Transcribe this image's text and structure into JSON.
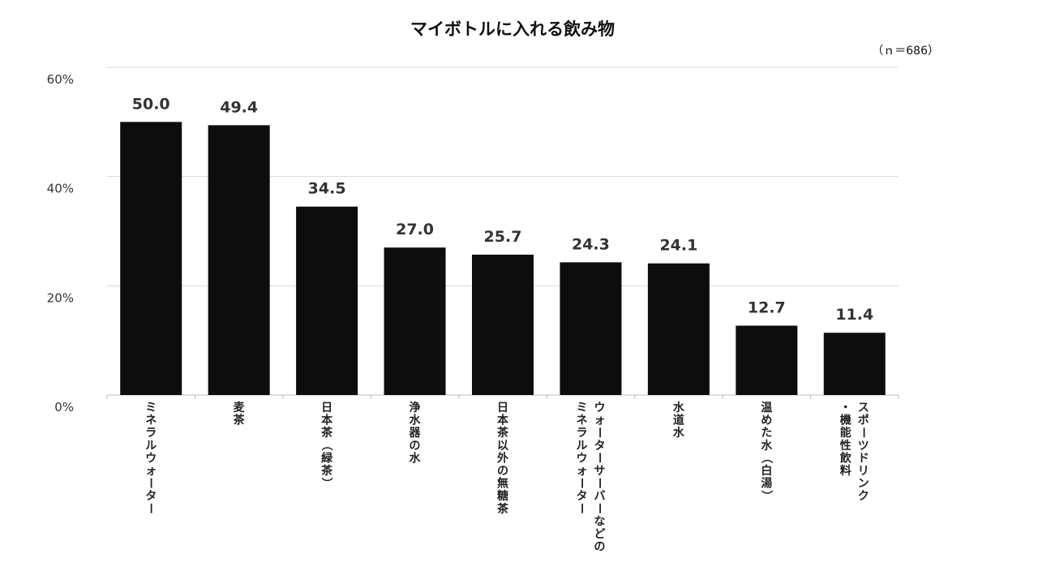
{
  "chart_data": {
    "type": "bar",
    "title": "マイボトルに入れる飲み物",
    "note": "（ｎ＝686）",
    "categories": [
      [
        "ミネラルウォーター"
      ],
      [
        "麦茶"
      ],
      [
        "日本茶（緑茶）"
      ],
      [
        "浄水器の水"
      ],
      [
        "日本茶以外の無糖茶"
      ],
      [
        "ウォーターサーバーなどの",
        "ミネラルウォーター"
      ],
      [
        "水道水"
      ],
      [
        "温めた水（白湯）"
      ],
      [
        "スポーツドリンク",
        "・機能性飲料"
      ]
    ],
    "values": [
      50.0,
      49.4,
      34.5,
      27.0,
      25.7,
      24.3,
      24.1,
      12.7,
      11.4
    ],
    "value_labels": [
      "50.0",
      "49.4",
      "34.5",
      "27.0",
      "25.7",
      "24.3",
      "24.1",
      "12.7",
      "11.4"
    ],
    "y_ticks": [
      0,
      20,
      40,
      60
    ],
    "y_tick_labels": [
      "0%",
      "20%",
      "40%",
      "60%"
    ],
    "ylim": [
      0,
      60
    ],
    "grid": true,
    "bar_color": "#0d0d0d"
  }
}
